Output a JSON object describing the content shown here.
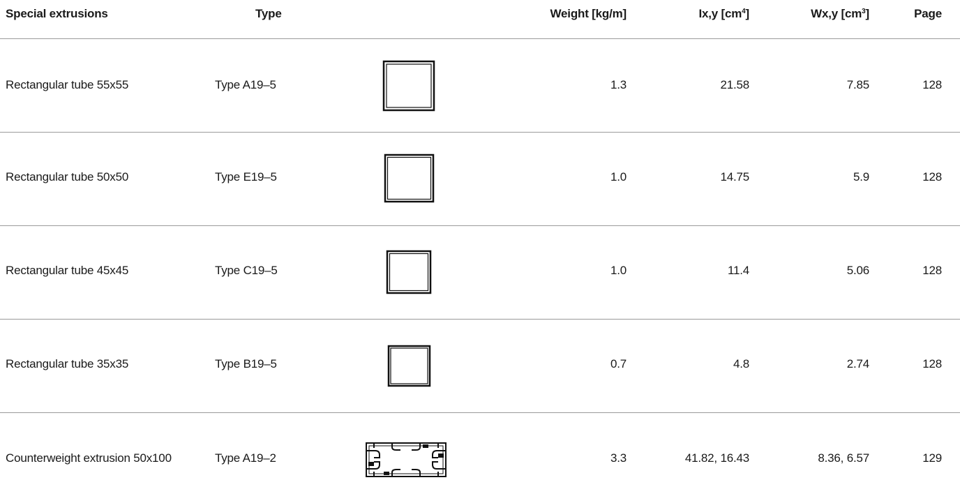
{
  "header": {
    "name": "Special extrusions",
    "type": "Type",
    "weight": "Weight [kg/m]",
    "ix_prefix": "Ix,y [cm",
    "ix_sup": "4",
    "ix_suffix": "]",
    "wx_prefix": "Wx,y [cm",
    "wx_sup": "3",
    "wx_suffix": "]",
    "page": "Page"
  },
  "rows": [
    {
      "name": "Rectangular tube 55x55",
      "type": "Type A19–5",
      "profile_icon": "square-tube-icon",
      "weight": "1.3",
      "ix": "21.58",
      "wx": "7.85",
      "page": "128"
    },
    {
      "name": "Rectangular tube 50x50",
      "type": "Type E19–5",
      "profile_icon": "square-tube-icon",
      "weight": "1.0",
      "ix": "14.75",
      "wx": "5.9",
      "page": "128"
    },
    {
      "name": "Rectangular tube 45x45",
      "type": "Type C19–5",
      "profile_icon": "square-tube-icon",
      "weight": "1.0",
      "ix": "11.4",
      "wx": "5.06",
      "page": "128"
    },
    {
      "name": "Rectangular tube 35x35",
      "type": "Type B19–5",
      "profile_icon": "square-tube-icon",
      "weight": "0.7",
      "ix": "4.8",
      "wx": "2.74",
      "page": "128"
    },
    {
      "name": "Counterweight extrusion 50x100",
      "type": "Type A19–2",
      "profile_icon": "counterweight-profile-icon",
      "weight": "3.3",
      "ix": "41.82, 16.43",
      "wx": "8.36, 6.57",
      "page": "129"
    }
  ]
}
